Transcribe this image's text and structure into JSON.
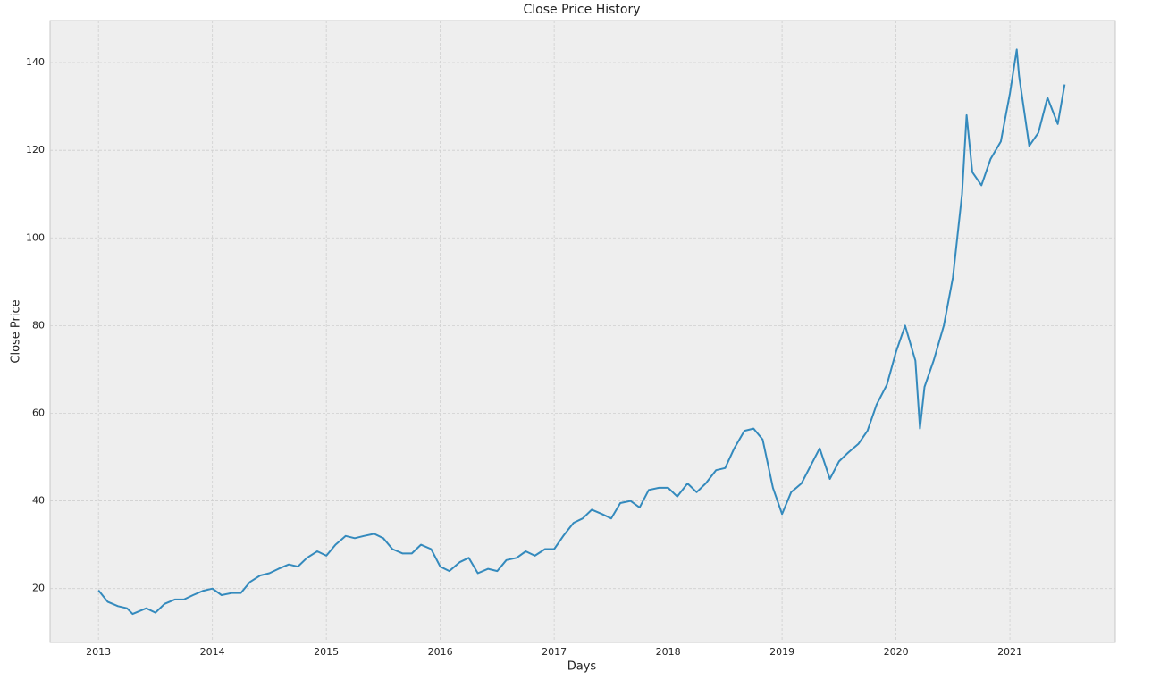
{
  "chart_data": {
    "type": "line",
    "title": "Close Price History",
    "x_label": "Days",
    "y_label": "Close Price",
    "x": [
      2013.0,
      2013.08,
      2013.17,
      2013.25,
      2013.3,
      2013.42,
      2013.5,
      2013.58,
      2013.67,
      2013.75,
      2013.83,
      2013.92,
      2014.0,
      2014.08,
      2014.17,
      2014.25,
      2014.33,
      2014.42,
      2014.5,
      2014.58,
      2014.67,
      2014.75,
      2014.83,
      2014.92,
      2015.0,
      2015.08,
      2015.17,
      2015.25,
      2015.33,
      2015.42,
      2015.5,
      2015.58,
      2015.67,
      2015.75,
      2015.83,
      2015.92,
      2016.0,
      2016.08,
      2016.17,
      2016.25,
      2016.33,
      2016.42,
      2016.5,
      2016.58,
      2016.67,
      2016.75,
      2016.83,
      2016.92,
      2017.0,
      2017.08,
      2017.17,
      2017.25,
      2017.33,
      2017.42,
      2017.5,
      2017.58,
      2017.67,
      2017.75,
      2017.83,
      2017.92,
      2018.0,
      2018.08,
      2018.17,
      2018.25,
      2018.33,
      2018.42,
      2018.5,
      2018.58,
      2018.67,
      2018.75,
      2018.83,
      2018.92,
      2019.0,
      2019.08,
      2019.17,
      2019.25,
      2019.33,
      2019.42,
      2019.5,
      2019.58,
      2019.67,
      2019.75,
      2019.83,
      2019.92,
      2020.0,
      2020.08,
      2020.17,
      2020.21,
      2020.25,
      2020.33,
      2020.42,
      2020.5,
      2020.58,
      2020.62,
      2020.67,
      2020.75,
      2020.83,
      2020.92,
      2021.0,
      2021.06,
      2021.08,
      2021.17,
      2021.25,
      2021.33,
      2021.42,
      2021.48
    ],
    "values": [
      19.6,
      17,
      16,
      15.5,
      14.2,
      15.5,
      14.5,
      16.5,
      17.5,
      17.5,
      18.5,
      19.5,
      20,
      18.5,
      19,
      19,
      21.5,
      23,
      23.5,
      24.5,
      25.5,
      25,
      27,
      28.5,
      27.5,
      30,
      32,
      31.5,
      32,
      32.5,
      31.5,
      29,
      28,
      28,
      30,
      29,
      25,
      24,
      26,
      27,
      23.5,
      24.5,
      24,
      26.5,
      27,
      28.5,
      27.5,
      29,
      29,
      32,
      35,
      36,
      38,
      37,
      36,
      39.5,
      40,
      38.5,
      42.5,
      43,
      43,
      41,
      44,
      42,
      44,
      47,
      47.5,
      52,
      56,
      56.5,
      54,
      43,
      37,
      42,
      44,
      48,
      52,
      45,
      49,
      51,
      53,
      56,
      62,
      66.5,
      74,
      80,
      72,
      56.5,
      66,
      72,
      80,
      91,
      110,
      128,
      115,
      112,
      118,
      122,
      133,
      143,
      137,
      121,
      124,
      132,
      126,
      135
    ],
    "color": "#348abd",
    "xlim": [
      2012.575,
      2021.925
    ],
    "xticks": [
      2013,
      2014,
      2015,
      2016,
      2017,
      2018,
      2019,
      2020,
      2021
    ],
    "ylim": [
      7.7,
      149.6
    ],
    "yticks": [
      20,
      40,
      60,
      80,
      100,
      120,
      140
    ],
    "grid": true
  }
}
